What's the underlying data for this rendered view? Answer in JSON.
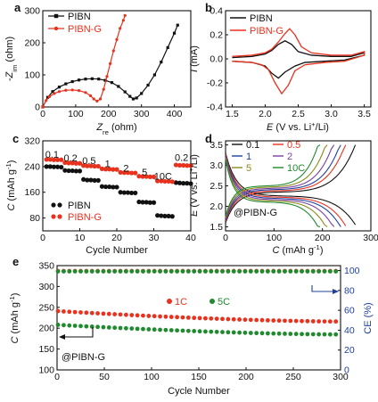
{
  "colors": {
    "black": "#111111",
    "red": "#e8321e",
    "blue": "#1f3f9c",
    "green": "#1f8a2e",
    "purple": "#7a3fa0",
    "olive": "#8a8a1a"
  },
  "panel_labels": [
    "a",
    "b",
    "c",
    "d",
    "e"
  ],
  "chart_data": [
    {
      "id": "a",
      "type": "line",
      "xlabel": "Zre (ohm)",
      "xlabel_parts": [
        "Z",
        "re",
        " (ohm)"
      ],
      "ylabel": "-Zim (ohm)",
      "ylabel_parts": [
        "-Z",
        "im",
        " (ohm)"
      ],
      "xlim": [
        0,
        450
      ],
      "ylim": [
        0,
        300
      ],
      "xticks": [
        0,
        100,
        200,
        300,
        400
      ],
      "yticks": [
        0,
        100,
        200,
        300
      ],
      "series": [
        {
          "name": "PIBN",
          "color": "#111111",
          "marker": "square",
          "x": [
            0,
            15,
            30,
            50,
            70,
            90,
            110,
            130,
            150,
            170,
            190,
            210,
            230,
            250,
            265,
            275,
            285,
            300,
            320,
            340,
            360,
            380,
            400,
            410
          ],
          "y": [
            0,
            30,
            48,
            62,
            72,
            79,
            84,
            87,
            88,
            87,
            83,
            76,
            64,
            47,
            33,
            25,
            28,
            42,
            68,
            100,
            140,
            185,
            230,
            255
          ]
        },
        {
          "name": "PIBN-G",
          "color": "#e8321e",
          "marker": "circle",
          "x": [
            0,
            10,
            20,
            35,
            50,
            70,
            90,
            110,
            130,
            145,
            155,
            165,
            175,
            185,
            195,
            205,
            215,
            225,
            235,
            245,
            250
          ],
          "y": [
            0,
            20,
            32,
            42,
            48,
            52,
            53,
            51,
            45,
            35,
            25,
            18,
            25,
            55,
            95,
            135,
            175,
            210,
            245,
            270,
            285
          ]
        }
      ]
    },
    {
      "id": "b",
      "type": "line",
      "xlabel": "E (V vs. Li+/Li)",
      "xlabel_parts": [
        "E",
        " (V vs. Li",
        "+",
        "/Li)"
      ],
      "ylabel": "I (mA)",
      "ylabel_parts": [
        "I",
        " (mA)"
      ],
      "xlim": [
        1.4,
        3.6
      ],
      "ylim": [
        -0.4,
        0.4
      ],
      "xticks": [
        1.5,
        2.0,
        2.5,
        3.0,
        3.5
      ],
      "yticks": [
        -0.4,
        -0.2,
        0.0,
        0.2,
        0.4
      ],
      "series": [
        {
          "name": "PIBN",
          "color": "#111111",
          "x": [
            1.5,
            1.8,
            2.0,
            2.1,
            2.2,
            2.3,
            2.4,
            2.5,
            2.7,
            3.0,
            3.3,
            3.5,
            3.5,
            3.2,
            2.9,
            2.6,
            2.45,
            2.3,
            2.2,
            2.1,
            2.0,
            1.8,
            1.5
          ],
          "y": [
            0.01,
            0.02,
            0.04,
            0.07,
            0.12,
            0.15,
            0.12,
            0.06,
            0.03,
            0.02,
            0.02,
            0.05,
            0.03,
            -0.01,
            -0.02,
            -0.03,
            -0.06,
            -0.11,
            -0.16,
            -0.12,
            -0.06,
            -0.03,
            -0.02
          ]
        },
        {
          "name": "PIBN-G",
          "color": "#e8321e",
          "x": [
            1.5,
            1.8,
            2.0,
            2.1,
            2.2,
            2.3,
            2.37,
            2.45,
            2.55,
            2.7,
            3.0,
            3.3,
            3.5,
            3.5,
            3.2,
            2.9,
            2.6,
            2.45,
            2.35,
            2.25,
            2.15,
            2.05,
            1.95,
            1.8,
            1.5
          ],
          "y": [
            0.02,
            0.03,
            0.05,
            0.08,
            0.14,
            0.21,
            0.25,
            0.2,
            0.1,
            0.05,
            0.03,
            0.03,
            0.06,
            0.03,
            -0.02,
            -0.03,
            -0.05,
            -0.1,
            -0.22,
            -0.29,
            -0.2,
            -0.09,
            -0.05,
            -0.03,
            -0.02
          ]
        }
      ]
    },
    {
      "id": "c",
      "type": "scatter",
      "xlabel": "Cycle Number",
      "ylabel": "C (mAh g-1)",
      "ylabel_parts": [
        "C",
        " (mAh g",
        "-1",
        ")"
      ],
      "xlim": [
        0,
        40
      ],
      "ylim": [
        40,
        320
      ],
      "xticks": [
        0,
        10,
        20,
        30,
        40
      ],
      "yticks": [
        80,
        160,
        240,
        320
      ],
      "rate_labels": [
        {
          "text": "0.1",
          "x": 2.5,
          "y": 268
        },
        {
          "text": "0.2",
          "x": 7.5,
          "y": 256
        },
        {
          "text": "0.5",
          "x": 12.5,
          "y": 248
        },
        {
          "text": "1",
          "x": 17.5,
          "y": 238
        },
        {
          "text": "2",
          "x": 22.5,
          "y": 225
        },
        {
          "text": "5",
          "x": 27.5,
          "y": 212
        },
        {
          "text": "10C",
          "x": 32.5,
          "y": 200
        },
        {
          "text": "0.2",
          "x": 37.5,
          "y": 257
        }
      ],
      "legend": "lower-left",
      "series": [
        {
          "name": "PIBN",
          "color": "#111111",
          "values": [
            240,
            240,
            239,
            239,
            238,
            228,
            227,
            227,
            226,
            226,
            200,
            198,
            198,
            197,
            197,
            178,
            177,
            177,
            176,
            176,
            160,
            159,
            159,
            158,
            158,
            130,
            129,
            129,
            128,
            128,
            88,
            87,
            86,
            86,
            85,
            190,
            189,
            188,
            188,
            187
          ]
        },
        {
          "name": "PIBN-G",
          "color": "#e8321e",
          "values": [
            262,
            262,
            261,
            261,
            261,
            252,
            251,
            251,
            250,
            250,
            243,
            242,
            242,
            241,
            241,
            233,
            232,
            232,
            231,
            231,
            222,
            221,
            221,
            220,
            220,
            210,
            209,
            209,
            208,
            208,
            195,
            195,
            194,
            194,
            193,
            245,
            244,
            244,
            243,
            243
          ]
        }
      ]
    },
    {
      "id": "d",
      "type": "line",
      "xlabel": "C (mAh g-1)",
      "xlabel_parts": [
        "C",
        " (mAh g",
        "-1",
        ")"
      ],
      "ylabel": "E (V vs. Li+/Li)",
      "ylabel_parts": [
        "E",
        " (V vs. Li",
        "+",
        "/Li)"
      ],
      "xlim": [
        0,
        300
      ],
      "ylim": [
        1.4,
        3.6
      ],
      "xticks": [
        0,
        100,
        200,
        300
      ],
      "yticks": [
        1.5,
        2.0,
        2.5,
        3.0,
        3.5
      ],
      "annotation": "@PIBN-G",
      "series": [
        {
          "name": "0.1",
          "color": "#111111",
          "capacity": 268
        },
        {
          "name": "0.5",
          "color": "#e8321e",
          "capacity": 248
        },
        {
          "name": "1",
          "color": "#1f3f9c",
          "capacity": 238
        },
        {
          "name": "2",
          "color": "#7a3fa0",
          "capacity": 224
        },
        {
          "name": "5",
          "color": "#8a8a1a",
          "capacity": 210
        },
        {
          "name": "10C",
          "color": "#1f8a2e",
          "capacity": 195
        }
      ]
    },
    {
      "id": "e",
      "type": "scatter",
      "xlabel": "Cycle Number",
      "ylabel": "C (mAh g-1)",
      "ylabel_parts": [
        "C",
        " (mAh g",
        "-1",
        ")"
      ],
      "ylabel_right": "CE (%)",
      "xlim": [
        0,
        300
      ],
      "ylim": [
        100,
        350
      ],
      "ylim_right": [
        0,
        105
      ],
      "xticks": [
        0,
        50,
        100,
        150,
        200,
        250,
        300
      ],
      "yticks": [
        100,
        150,
        200,
        250,
        300,
        350
      ],
      "yticks_right": [
        0,
        20,
        40,
        60,
        80,
        100
      ],
      "annotation": "@PIBN-G",
      "series": [
        {
          "name": "1C",
          "color": "#e8321e",
          "start": 241,
          "end": 216
        },
        {
          "name": "5C",
          "color": "#1f8a2e",
          "start": 208,
          "end": 185
        },
        {
          "name": "CE 1C",
          "color": "#e8321e",
          "axis": "right",
          "value": 99.6
        },
        {
          "name": "CE 5C",
          "color": "#1f8a2e",
          "axis": "right",
          "value": 99.2
        }
      ]
    }
  ]
}
